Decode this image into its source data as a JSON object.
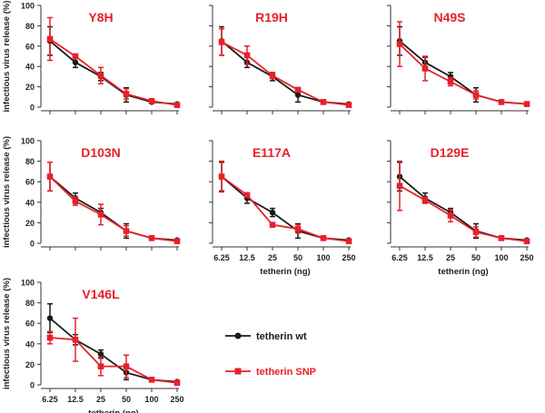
{
  "chart_data": {
    "type": "line",
    "ylabel": "infectious virus release (%)",
    "xlabel": "tetherin (ng)",
    "x": [
      "6.25",
      "12.5",
      "25",
      "50",
      "100",
      "250"
    ],
    "ylim": [
      0,
      100
    ],
    "yticks": [
      0,
      20,
      40,
      60,
      80,
      100
    ],
    "legend": {
      "placement": "bottom-center",
      "entries": [
        "tetherin wt",
        "tetherin SNP"
      ]
    },
    "colors": {
      "wt": "#1a1a1a",
      "snp": "#e8202a",
      "title": "#e8202a"
    },
    "wt": {
      "values": [
        65,
        44,
        30,
        12,
        5,
        3
      ],
      "errors": [
        14,
        5,
        4,
        7,
        1,
        1
      ]
    },
    "panels": [
      {
        "title": "Y8H",
        "snp": [
          67,
          50,
          31,
          13,
          6,
          2
        ],
        "snp_err": [
          21,
          2,
          8,
          5,
          1,
          1
        ],
        "show_ylabels": true,
        "show_xlabels": false
      },
      {
        "title": "R19H",
        "snp": [
          64,
          51,
          31,
          17,
          5,
          2
        ],
        "snp_err": [
          13,
          9,
          3,
          2,
          1,
          1
        ],
        "show_ylabels": false,
        "show_xlabels": false
      },
      {
        "title": "N49S",
        "snp": [
          62,
          38,
          25,
          12,
          5,
          3
        ],
        "snp_err": [
          22,
          12,
          4,
          4,
          1,
          1
        ],
        "show_ylabels": false,
        "show_xlabels": false
      },
      {
        "title": "D103N",
        "snp": [
          65,
          41,
          28,
          12,
          5,
          2
        ],
        "snp_err": [
          14,
          4,
          10,
          5,
          1,
          1
        ],
        "show_ylabels": true,
        "show_xlabels": false
      },
      {
        "title": "E117A",
        "snp": [
          65,
          47,
          18,
          14,
          5,
          2
        ],
        "snp_err": [
          15,
          2,
          1,
          4,
          1,
          1
        ],
        "show_ylabels": false,
        "show_xlabels": true
      },
      {
        "title": "D129E",
        "snp": [
          56,
          42,
          27,
          11,
          5,
          2
        ],
        "snp_err": [
          24,
          3,
          6,
          5,
          1,
          1
        ],
        "show_ylabels": false,
        "show_xlabels": true
      },
      {
        "title": "V146L",
        "snp": [
          46,
          44,
          18,
          18,
          5,
          2
        ],
        "snp_err": [
          6,
          21,
          9,
          11,
          1,
          1
        ],
        "show_ylabels": true,
        "show_xlabels": true
      }
    ]
  }
}
